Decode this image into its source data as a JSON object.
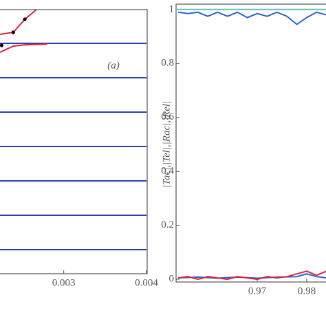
{
  "chart_data": [
    {
      "type": "line",
      "annotation": "(a)",
      "xlim": [
        0.00223,
        0.004
      ],
      "ylim": [
        0,
        7.68
      ],
      "xticks": [
        0.003,
        0.004
      ],
      "series": [
        {
          "color": "#2a3fb0",
          "x": [
            0.00223,
            0.004
          ],
          "values": [
            0.7,
            0.7
          ]
        },
        {
          "color": "#2a3fb0",
          "x": [
            0.00223,
            0.004
          ],
          "values": [
            1.7,
            1.7
          ]
        },
        {
          "color": "#2a3fb0",
          "x": [
            0.00223,
            0.004
          ],
          "values": [
            2.7,
            2.7
          ]
        },
        {
          "color": "#2a3fb0",
          "x": [
            0.00223,
            0.004
          ],
          "values": [
            3.7,
            3.7
          ]
        },
        {
          "color": "#2a3fb0",
          "x": [
            0.00223,
            0.004
          ],
          "values": [
            4.7,
            4.7
          ]
        },
        {
          "color": "#2a3fb0",
          "x": [
            0.00223,
            0.004
          ],
          "values": [
            5.7,
            5.7
          ]
        },
        {
          "color": "#2a3fb0",
          "x": [
            0.00223,
            0.004
          ],
          "values": [
            6.7,
            6.7
          ]
        },
        {
          "color": "#d8243c",
          "x": [
            0.00223,
            0.00239,
            0.00253,
            0.00267
          ],
          "values": [
            6.96,
            7.02,
            7.4,
            7.68
          ]
        },
        {
          "color": "#d8243c",
          "x": [
            0.00223,
            0.00239,
            0.00255,
            0.00271,
            0.0028
          ],
          "values": [
            6.44,
            6.62,
            6.66,
            6.67,
            6.68
          ]
        },
        {
          "color": "#000000",
          "marker": true,
          "x": [
            0.00225,
            0.00239,
            0.00253
          ],
          "values": [
            6.64,
            7.02,
            7.4
          ]
        }
      ]
    },
    {
      "type": "line",
      "ylabel": "|Tac|,|Tel|,|Rac|,|Rel|",
      "xlim": [
        0.9536,
        0.9839
      ],
      "ylim": [
        -0.01,
        1.02
      ],
      "xticks": [
        0.97,
        0.98
      ],
      "yticks": [
        0,
        0.2,
        0.4,
        0.6,
        0.8,
        1
      ],
      "series": [
        {
          "color": "#5fc4bc",
          "x": [
            0.9536,
            0.9839
          ],
          "values": [
            1,
            1
          ]
        },
        {
          "color": "#2f5fd0",
          "x": [
            0.954,
            0.956,
            0.958,
            0.96,
            0.962,
            0.964,
            0.966,
            0.968,
            0.97,
            0.972,
            0.974,
            0.976,
            0.978,
            0.98,
            0.982,
            0.984
          ],
          "values": [
            0.99,
            0.985,
            0.99,
            0.975,
            0.99,
            0.975,
            0.99,
            0.97,
            0.985,
            0.975,
            0.99,
            0.975,
            0.945,
            0.97,
            0.99,
            0.98
          ]
        },
        {
          "color": "#2f5fd0",
          "x": [
            0.954,
            0.958,
            0.962,
            0.966,
            0.97,
            0.974,
            0.978,
            0.98,
            0.982,
            0.984
          ],
          "values": [
            0.005,
            0.008,
            0.004,
            0.008,
            0.004,
            0.008,
            0.01,
            0.02,
            0.01,
            0.005
          ]
        },
        {
          "color": "#d8243c",
          "x": [
            0.954,
            0.956,
            0.958,
            0.96,
            0.962,
            0.964,
            0.966,
            0.968,
            0.97,
            0.972,
            0.974,
            0.976,
            0.978,
            0.98,
            0.982,
            0.984
          ],
          "values": [
            0.005,
            0.01,
            0,
            0.01,
            0.005,
            0,
            0.01,
            0.005,
            0,
            0.01,
            0.005,
            0.01,
            0.02,
            0.03,
            0.015,
            0.03
          ]
        }
      ]
    }
  ]
}
